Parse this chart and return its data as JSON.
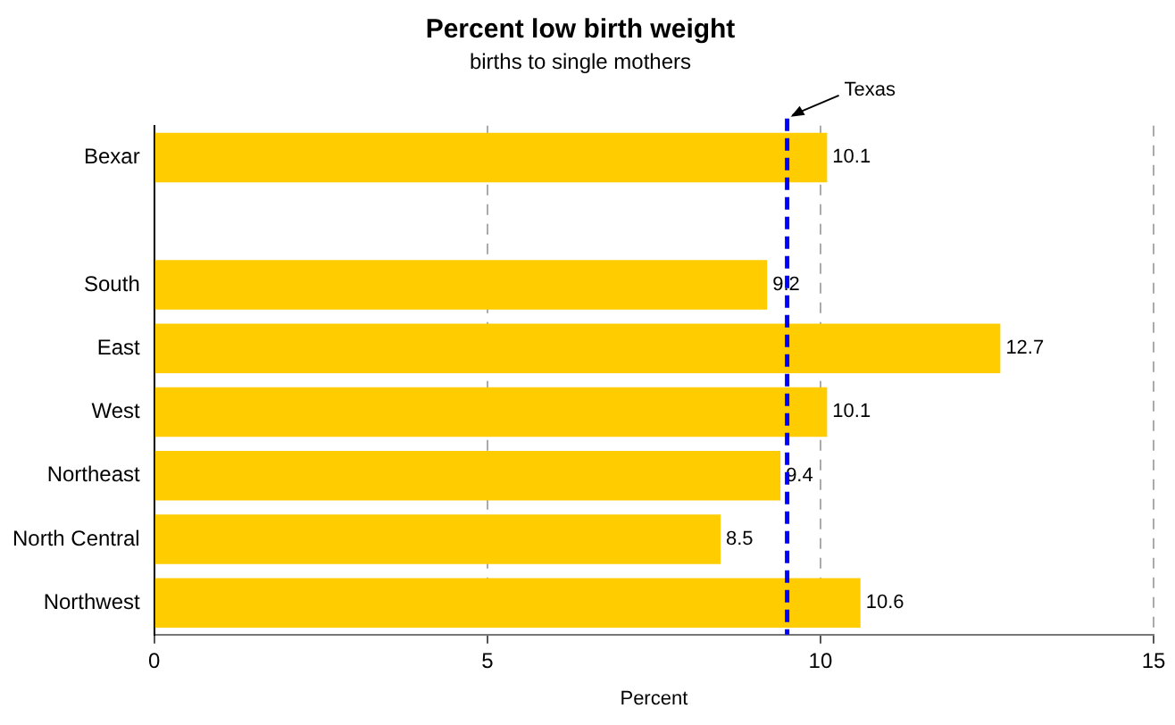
{
  "chart_data": {
    "type": "bar",
    "orientation": "horizontal",
    "title": "Percent low birth weight",
    "subtitle": "births to single mothers",
    "xlabel": "Percent",
    "categories": [
      "Bexar",
      null,
      "South",
      "East",
      "West",
      "Northeast",
      "North Central",
      "Northwest"
    ],
    "values": [
      10.1,
      null,
      9.2,
      12.7,
      10.1,
      9.4,
      8.5,
      10.6
    ],
    "color": "#ffcc00",
    "xlim": [
      0,
      15
    ],
    "xticks": [
      0,
      5,
      10,
      15
    ],
    "grid": "x",
    "data_labels": true,
    "legend": false,
    "ref_lines": [
      {
        "axis": "x",
        "value": 9.5,
        "label": "Texas",
        "color": "#0000ff",
        "line_style": "dashed"
      }
    ]
  }
}
